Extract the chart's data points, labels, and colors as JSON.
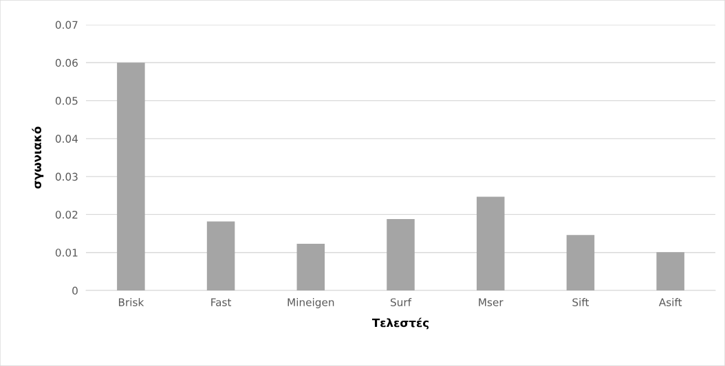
{
  "chart_data": {
    "type": "bar",
    "xlabel": "Τελεστές",
    "ylabel": "σγωνιακό",
    "categories": [
      "Brisk",
      "Fast",
      "Mineigen",
      "Surf",
      "Mser",
      "Sift",
      "Asift"
    ],
    "values": [
      0.06,
      0.0182,
      0.0123,
      0.0188,
      0.0247,
      0.0146,
      0.0101
    ],
    "color": "#a5a5a5",
    "ylim": [
      0,
      0.07
    ],
    "yticks": [
      0,
      0.01,
      0.02,
      0.03,
      0.04,
      0.05,
      0.06,
      0.07
    ],
    "grid": "y"
  }
}
